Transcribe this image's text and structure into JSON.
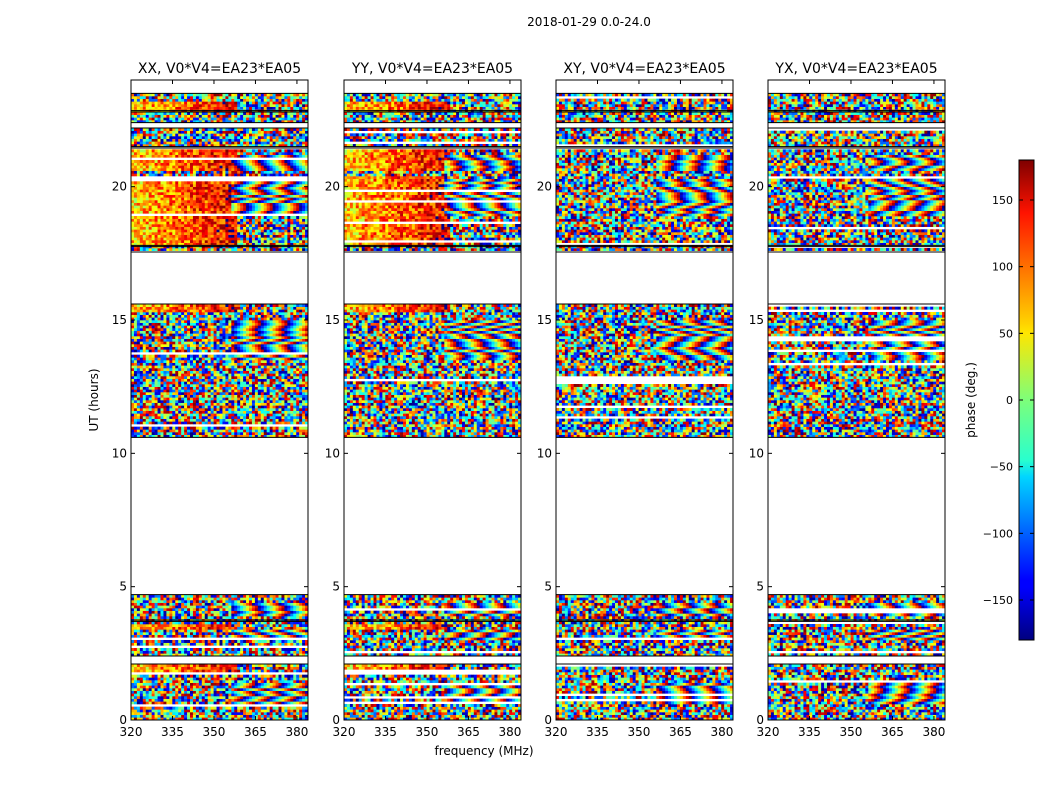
{
  "figure": {
    "title": "2018-01-29 0.0-24.0"
  },
  "chart_data": [
    {
      "type": "heatmap",
      "title": "XX, V0*V4=EA23*EA05",
      "xlabel": "",
      "ylabel": "UT (hours)",
      "xlim": [
        320,
        384
      ],
      "ylim": [
        0,
        24
      ],
      "xticks": [
        320,
        335,
        350,
        365,
        380
      ],
      "yticks": [
        0,
        5,
        10,
        15,
        20
      ],
      "coherent_phase": true
    },
    {
      "type": "heatmap",
      "title": "YY, V0*V4=EA23*EA05",
      "xlabel": "frequency (MHz)",
      "ylabel": "",
      "xlim": [
        320,
        384
      ],
      "ylim": [
        0,
        24
      ],
      "xticks": [
        320,
        335,
        350,
        365,
        380
      ],
      "yticks": [
        0,
        5,
        10,
        15,
        20
      ],
      "coherent_phase": true
    },
    {
      "type": "heatmap",
      "title": "XY, V0*V4=EA23*EA05",
      "xlabel": "",
      "ylabel": "",
      "xlim": [
        320,
        384
      ],
      "ylim": [
        0,
        24
      ],
      "xticks": [
        320,
        335,
        350,
        365,
        380
      ],
      "yticks": [
        0,
        5,
        10,
        15,
        20
      ],
      "coherent_phase": false
    },
    {
      "type": "heatmap",
      "title": "YX, V0*V4=EA23*EA05",
      "xlabel": "",
      "ylabel": "",
      "xlim": [
        320,
        384
      ],
      "ylim": [
        0,
        24
      ],
      "xticks": [
        320,
        335,
        350,
        365,
        380
      ],
      "yticks": [
        0,
        5,
        10,
        15,
        20
      ],
      "coherent_phase": false
    }
  ],
  "colorbar": {
    "label": "phase (deg.)",
    "range": [
      -180,
      180
    ],
    "ticks": [
      150,
      100,
      50,
      0,
      -50,
      -100,
      -150
    ],
    "colormap": "jet"
  },
  "data_blocks_hours": [
    [
      0.0,
      2.1
    ],
    [
      2.4,
      3.7
    ],
    [
      3.75,
      4.7
    ],
    [
      10.6,
      15.6
    ],
    [
      17.55,
      17.75
    ],
    [
      17.8,
      21.45
    ],
    [
      21.5,
      22.2
    ],
    [
      22.4,
      22.8
    ],
    [
      22.85,
      23.5
    ]
  ],
  "strong_phase_blocks_hours": [
    [
      1.75,
      2.1
    ],
    [
      3.45,
      3.6
    ],
    [
      15.3,
      15.6
    ],
    [
      17.8,
      20.45
    ],
    [
      20.6,
      21.45
    ],
    [
      22.85,
      23.2
    ]
  ],
  "fringe_blocks_hours": [
    [
      3.0,
      3.4
    ],
    [
      3.9,
      4.4
    ],
    [
      18.9,
      20.3
    ],
    [
      20.6,
      21.2
    ],
    [
      13.5,
      15.0
    ],
    [
      0.6,
      1.4
    ]
  ]
}
